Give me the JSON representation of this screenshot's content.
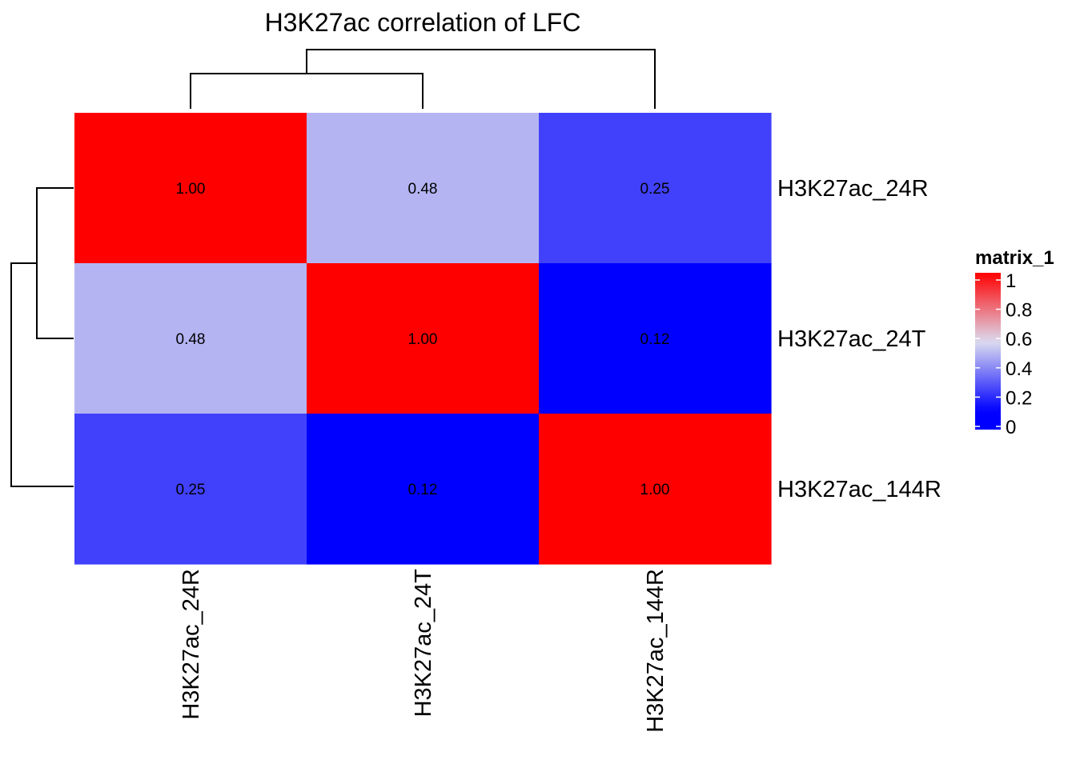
{
  "chart_data": {
    "type": "heatmap",
    "title": "H3K27ac correlation of LFC",
    "rows": [
      "H3K27ac_24R",
      "H3K27ac_24T",
      "H3K27ac_144R"
    ],
    "columns": [
      "H3K27ac_24R",
      "H3K27ac_24T",
      "H3K27ac_144R"
    ],
    "values": [
      [
        1.0,
        0.48,
        0.25
      ],
      [
        0.48,
        1.0,
        0.12
      ],
      [
        0.25,
        0.12,
        1.0
      ]
    ],
    "cell_labels": [
      [
        "1.00",
        "0.48",
        "0.25"
      ],
      [
        "0.48",
        "1.00",
        "0.12"
      ],
      [
        "0.25",
        "0.12",
        "1.00"
      ]
    ],
    "color_scale": {
      "stops": [
        {
          "value": 0.12,
          "color": "#0000ff"
        },
        {
          "value": 0.56,
          "color": "#dcdcf0"
        },
        {
          "value": 1.0,
          "color": "#ff0000"
        }
      ]
    },
    "legend": {
      "title": "matrix_1",
      "ticks": [
        "1",
        "0.8",
        "0.6",
        "0.4",
        "0.2",
        "0"
      ],
      "tick_values": [
        1,
        0.8,
        0.6,
        0.4,
        0.2,
        0
      ],
      "range": [
        0,
        1
      ],
      "placement": "right"
    },
    "row_dendrogram": true,
    "column_dendrogram": true
  }
}
